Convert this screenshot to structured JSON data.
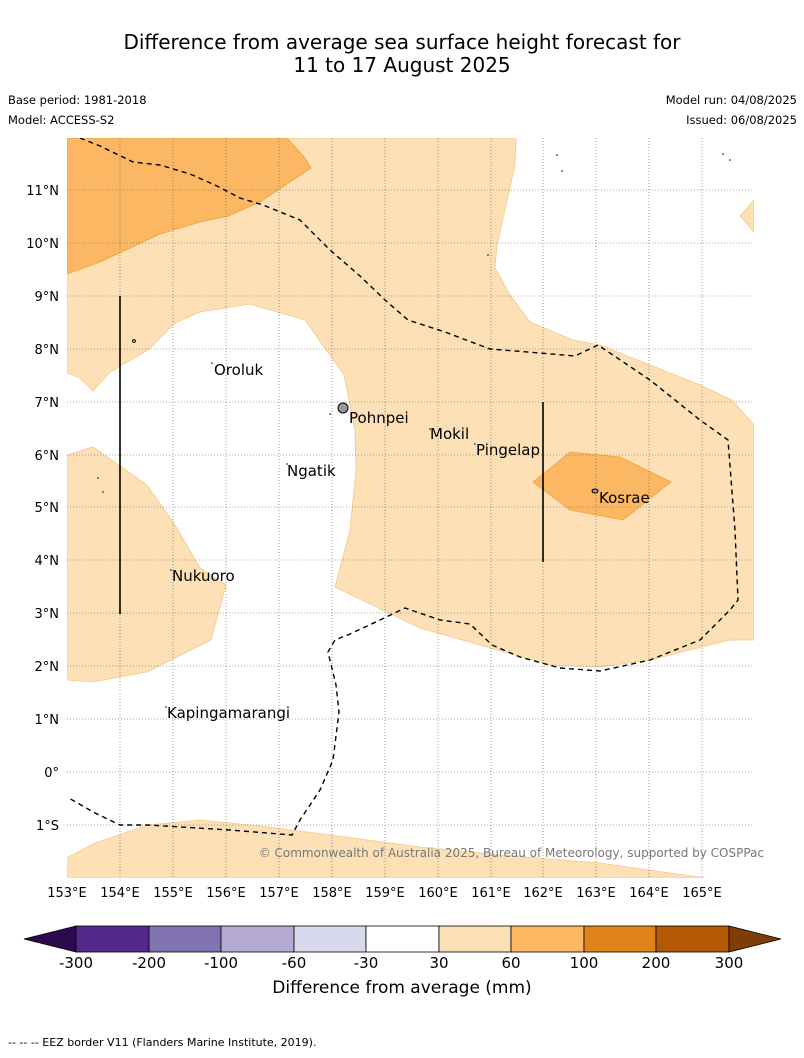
{
  "title_line1": "Difference from average sea surface height forecast for",
  "title_line2": "11 to 17 August 2025",
  "base_period": "Base period: 1981-2018",
  "model": "Model: ACCESS-S2",
  "model_run": "Model run: 04/08/2025",
  "issued": "Issued: 06/08/2025",
  "copyright": "© Commonwealth of Australia 2025, Bureau of Meteorology, supported by COSPPac",
  "footer": "-- -- -- EEZ border V11 (Flanders Marine Institute, 2019).",
  "lat_labels": [
    "11°N",
    "10°N",
    "9°N",
    "8°N",
    "7°N",
    "6°N",
    "5°N",
    "4°N",
    "3°N",
    "2°N",
    "1°N",
    "0°",
    "1°S"
  ],
  "lon_labels": [
    "153°E",
    "154°E",
    "155°E",
    "156°E",
    "157°E",
    "158°E",
    "159°E",
    "160°E",
    "161°E",
    "162°E",
    "163°E",
    "164°E",
    "165°E"
  ],
  "places": [
    {
      "name": "Oroluk"
    },
    {
      "name": "Pohnpei"
    },
    {
      "name": "Mokil"
    },
    {
      "name": "Pingelap"
    },
    {
      "name": "Ngatik"
    },
    {
      "name": "Kosrae"
    },
    {
      "name": "Nukuoro"
    },
    {
      "name": "Kapingamarangi"
    }
  ],
  "colorbar": {
    "title": "Difference from average (mm)",
    "ticks": [
      "-300",
      "-200",
      "-100",
      "-60",
      "-30",
      "30",
      "60",
      "100",
      "200",
      "300"
    ],
    "colors": [
      "#55288d",
      "#8073b0",
      "#b3a9d3",
      "#d9d9ed",
      "#ffffff",
      "#fde0b5",
      "#fbb761",
      "#e0831a",
      "#b35906"
    ],
    "under_color": "#2d0a4e",
    "over_color": "#7f3b08"
  }
}
